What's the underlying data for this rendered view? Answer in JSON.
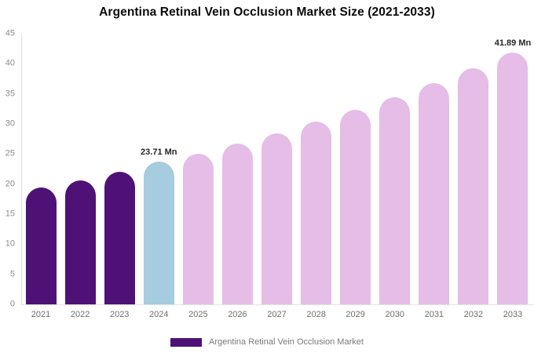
{
  "legend": {
    "label": "Argentina Retinal Vein Occlusion Market",
    "position": "bottom-center"
  },
  "colors": {
    "historical": "#4E1277",
    "current": "#A5CCDF",
    "forecast": "#E5BDE7",
    "axis_line": "#DCDCDC",
    "tick_text": "#8C8C8C",
    "value_label_text": "#262626"
  },
  "y_axis": {
    "min": 0,
    "max": 45,
    "step": 5,
    "ticks": [
      0,
      5,
      10,
      15,
      20,
      25,
      30,
      35,
      40,
      45
    ]
  },
  "chart_data": {
    "type": "bar",
    "title": "Argentina Retinal Vein Occlusion Market Size (2021-2033)",
    "xlabel": "",
    "ylabel": "",
    "unit": "Mn",
    "ylim": [
      0,
      45
    ],
    "grid": false,
    "legend_position": "bottom",
    "categories": [
      2021,
      2022,
      2023,
      2024,
      2025,
      2026,
      2027,
      2028,
      2029,
      2030,
      2031,
      2032,
      2033
    ],
    "values": [
      19.4,
      20.6,
      22.0,
      23.71,
      25.0,
      26.7,
      28.4,
      30.4,
      32.4,
      34.5,
      36.8,
      39.2,
      41.89
    ],
    "roles": [
      "historical",
      "historical",
      "historical",
      "current",
      "forecast",
      "forecast",
      "forecast",
      "forecast",
      "forecast",
      "forecast",
      "forecast",
      "forecast",
      "forecast"
    ],
    "value_labels": {
      "2024": "23.71 Mn",
      "2033": "41.89 Mn"
    }
  }
}
